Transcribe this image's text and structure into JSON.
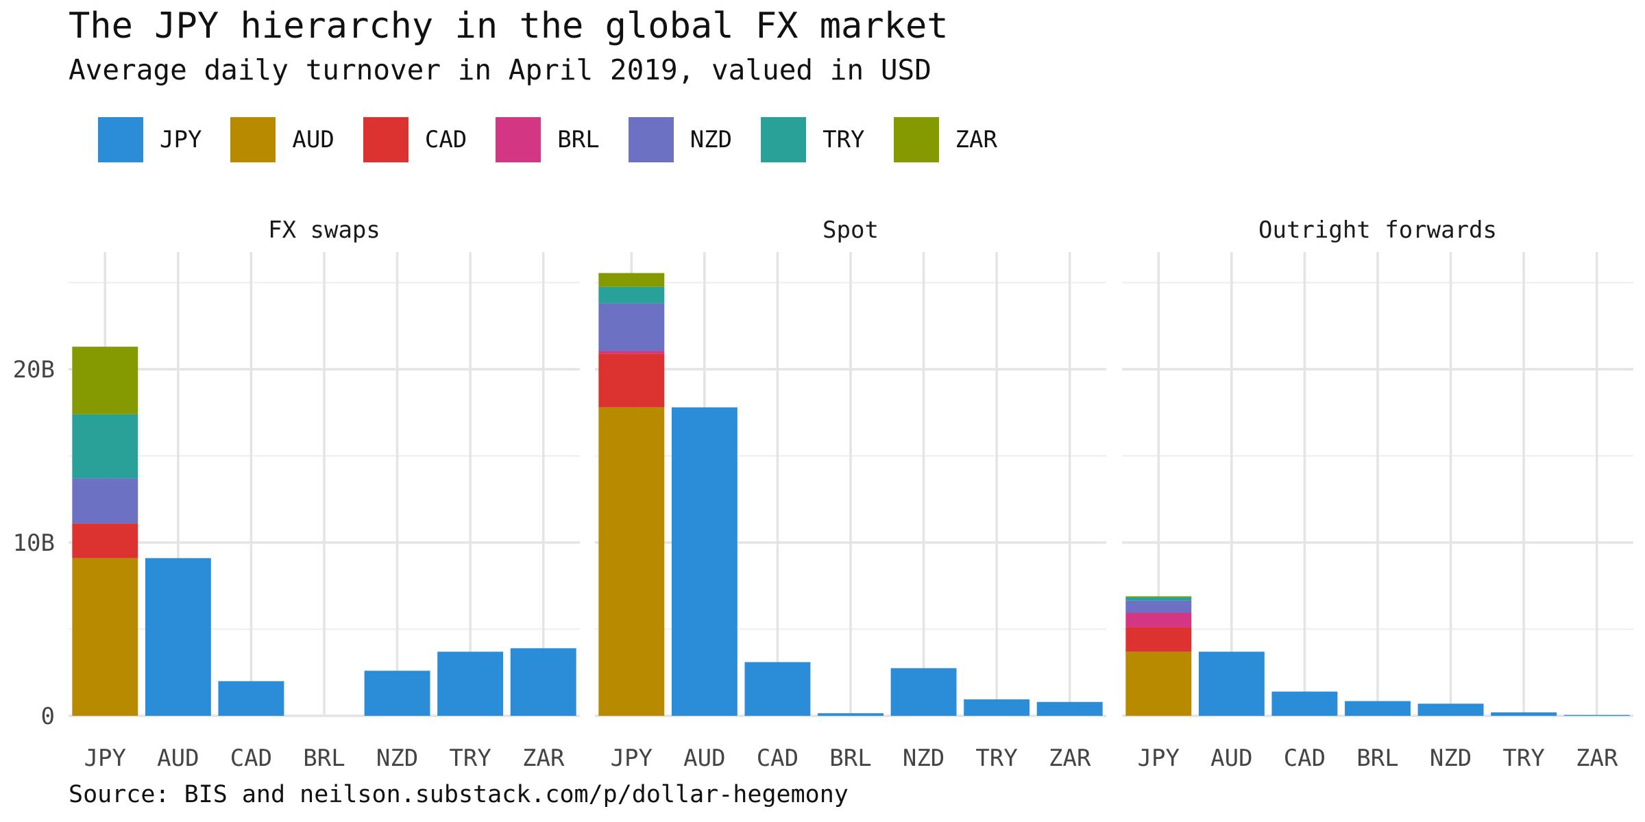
{
  "chart_data": {
    "type": "bar",
    "stacked": true,
    "facets": [
      "FX swaps",
      "Spot",
      "Outright forwards"
    ],
    "title": "The JPY hierarchy in the global FX market",
    "subtitle": "Average daily turnover in April 2019, valued in USD",
    "caption": "Source: BIS and neilson.substack.com/p/dollar-hegemony",
    "xlabel": "",
    "ylabel": "",
    "categories": [
      "JPY",
      "AUD",
      "CAD",
      "BRL",
      "NZD",
      "TRY",
      "ZAR"
    ],
    "ylim": [
      0,
      26.5
    ],
    "y_ticks": [
      0,
      10,
      20
    ],
    "y_tick_labels": [
      "0",
      "10B",
      "20B"
    ],
    "unit": "billion USD",
    "grid": true,
    "legend_position": "top-left",
    "legend": [
      "JPY",
      "AUD",
      "CAD",
      "BRL",
      "NZD",
      "TRY",
      "ZAR"
    ],
    "colors": {
      "JPY": "#2B8CD8",
      "AUD": "#B88A00",
      "CAD": "#DC3330",
      "BRL": "#D33682",
      "NZD": "#6C71C4",
      "TRY": "#2AA198",
      "ZAR": "#859900"
    },
    "panels": [
      {
        "facet": "FX swaps",
        "series": [
          {
            "name": "JPY",
            "values": [
              0,
              9.1,
              2.0,
              0,
              2.6,
              3.7,
              3.9
            ]
          },
          {
            "name": "AUD",
            "values": [
              9.1,
              0,
              0,
              0,
              0,
              0,
              0
            ]
          },
          {
            "name": "CAD",
            "values": [
              2.0,
              0,
              0,
              0,
              0,
              0,
              0
            ]
          },
          {
            "name": "BRL",
            "values": [
              0,
              0,
              0,
              0,
              0,
              0,
              0
            ]
          },
          {
            "name": "NZD",
            "values": [
              2.6,
              0,
              0,
              0,
              0,
              0,
              0
            ]
          },
          {
            "name": "TRY",
            "values": [
              3.7,
              0,
              0,
              0,
              0,
              0,
              0
            ]
          },
          {
            "name": "ZAR",
            "values": [
              3.9,
              0,
              0,
              0,
              0,
              0,
              0
            ]
          }
        ]
      },
      {
        "facet": "Spot",
        "series": [
          {
            "name": "JPY",
            "values": [
              0,
              17.8,
              3.1,
              0.15,
              2.75,
              0.95,
              0.8
            ]
          },
          {
            "name": "AUD",
            "values": [
              17.8,
              0,
              0,
              0,
              0,
              0,
              0
            ]
          },
          {
            "name": "CAD",
            "values": [
              3.1,
              0,
              0,
              0,
              0,
              0,
              0
            ]
          },
          {
            "name": "BRL",
            "values": [
              0.15,
              0,
              0,
              0,
              0,
              0,
              0
            ]
          },
          {
            "name": "NZD",
            "values": [
              2.75,
              0,
              0,
              0,
              0,
              0,
              0
            ]
          },
          {
            "name": "TRY",
            "values": [
              0.95,
              0,
              0,
              0,
              0,
              0,
              0
            ]
          },
          {
            "name": "ZAR",
            "values": [
              0.8,
              0,
              0,
              0,
              0,
              0,
              0
            ]
          }
        ]
      },
      {
        "facet": "Outright forwards",
        "series": [
          {
            "name": "JPY",
            "values": [
              0,
              3.7,
              1.4,
              0.85,
              0.7,
              0.2,
              0.05
            ]
          },
          {
            "name": "AUD",
            "values": [
              3.7,
              0,
              0,
              0,
              0,
              0,
              0
            ]
          },
          {
            "name": "CAD",
            "values": [
              1.4,
              0,
              0,
              0,
              0,
              0,
              0
            ]
          },
          {
            "name": "BRL",
            "values": [
              0.85,
              0,
              0,
              0,
              0,
              0,
              0
            ]
          },
          {
            "name": "NZD",
            "values": [
              0.7,
              0,
              0,
              0,
              0,
              0,
              0
            ]
          },
          {
            "name": "TRY",
            "values": [
              0.2,
              0,
              0,
              0,
              0,
              0,
              0
            ]
          },
          {
            "name": "ZAR",
            "values": [
              0.05,
              0,
              0,
              0,
              0,
              0,
              0
            ]
          }
        ]
      }
    ]
  }
}
